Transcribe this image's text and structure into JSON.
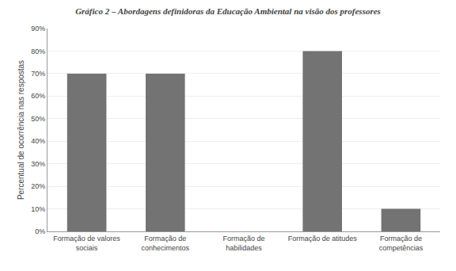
{
  "chart_data": {
    "type": "bar",
    "title": "Gráfico 2 – Abordagens definidoras da Educação Ambiental na visão dos professores",
    "categories": [
      "Formação de valores\nsociais",
      "Formação de\nconhecimentos",
      "Formação de\nhabilidades",
      "Formação de atitudes",
      "Formação de\ncompetências"
    ],
    "values": [
      70,
      70,
      0,
      80,
      10
    ],
    "color": "#737373",
    "ylabel": "Percentual de ocorrência nas respostas",
    "ylim": [
      0,
      90
    ],
    "yticks": [
      {
        "value": 0,
        "label": "0%"
      },
      {
        "value": 10,
        "label": "10%"
      },
      {
        "value": 20,
        "label": "20%"
      },
      {
        "value": 30,
        "label": "30%"
      },
      {
        "value": 40,
        "label": "40%"
      },
      {
        "value": 50,
        "label": "50%"
      },
      {
        "value": 60,
        "label": "60%"
      },
      {
        "value": 70,
        "label": "70%"
      },
      {
        "value": 80,
        "label": "80%"
      },
      {
        "value": 90,
        "label": "90%"
      }
    ],
    "grid": true
  }
}
